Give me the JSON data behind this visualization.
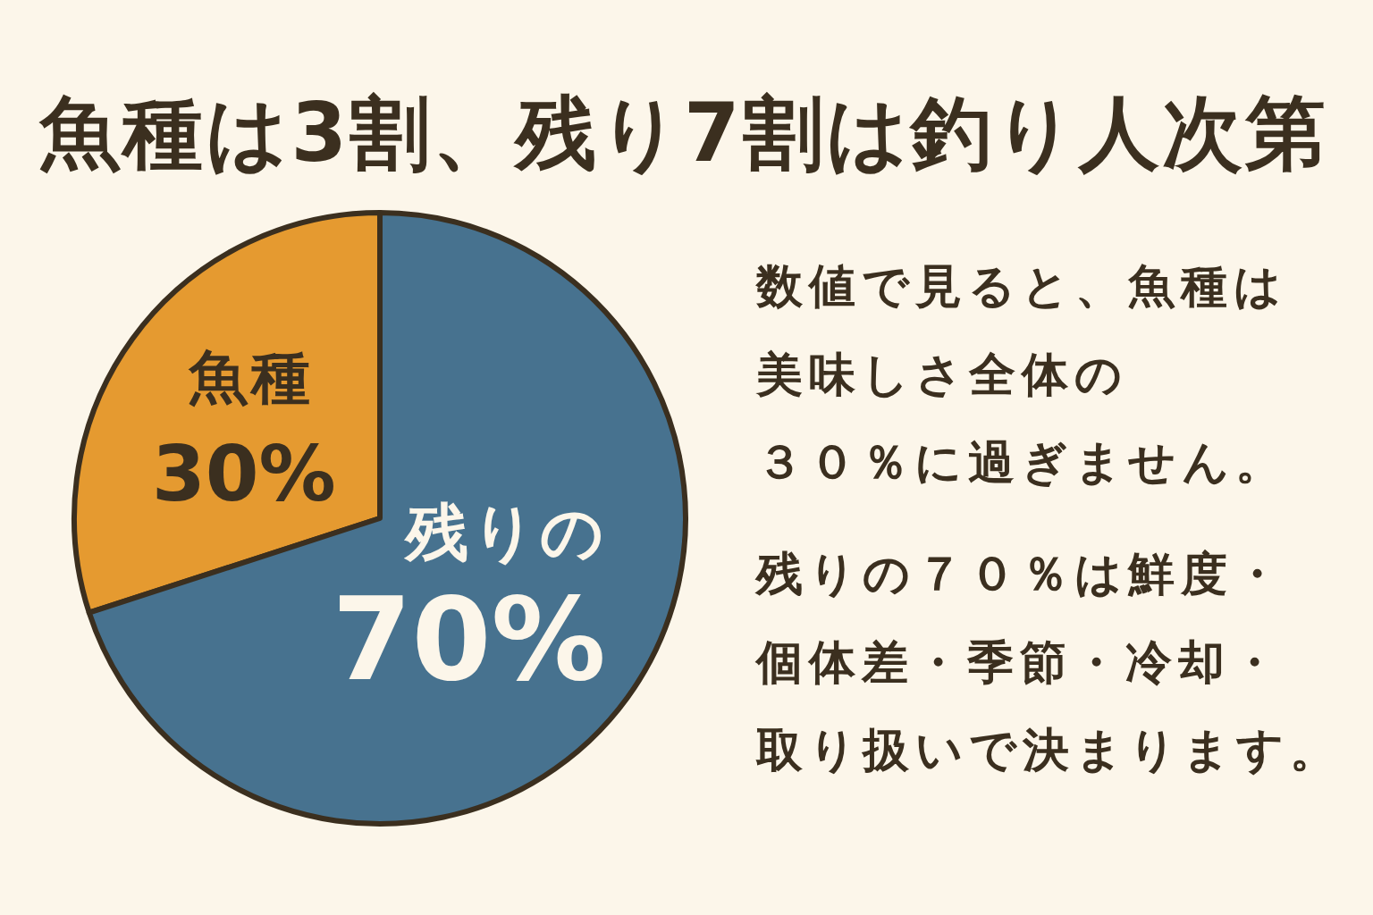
{
  "chart_data": {
    "type": "pie",
    "title": "魚種は3割、残り7割は釣り人次第",
    "categories": [
      "魚種",
      "残りの"
    ],
    "values": [
      30,
      70
    ],
    "colors": [
      "#E59A30",
      "#47728F"
    ],
    "value_labels": [
      "30%",
      "70%"
    ],
    "annotations": [
      "数値で見ると、魚種は美味しさ全体の３０％に過ぎません。",
      "残りの７０％は鮮度・個体差・季節・冷却・取り扱いで決まります。"
    ]
  }
}
